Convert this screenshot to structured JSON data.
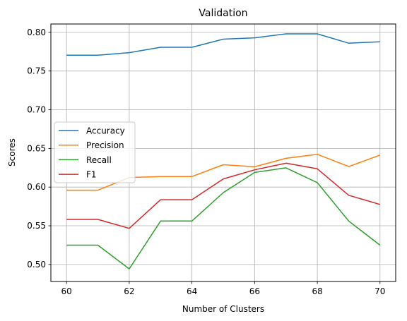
{
  "chart_data": {
    "type": "line",
    "title": "Validation",
    "xlabel": "Number of Clusters",
    "ylabel": "Scores",
    "xlim": [
      59.5,
      70.5
    ],
    "ylim": [
      0.478,
      0.8108
    ],
    "xticks": [
      60,
      62,
      64,
      66,
      68,
      70
    ],
    "yticks": [
      0.5,
      0.55,
      0.6,
      0.65,
      0.7,
      0.75,
      0.8
    ],
    "grid": true,
    "legend_position": "center-left",
    "x": [
      60,
      61,
      62,
      63,
      64,
      65,
      66,
      67,
      68,
      69,
      70
    ],
    "series": [
      {
        "name": "Accuracy",
        "color": "#1f77b4",
        "values": [
          0.7705,
          0.7705,
          0.7738,
          0.7807,
          0.7807,
          0.7912,
          0.7929,
          0.798,
          0.798,
          0.786,
          0.7878
        ]
      },
      {
        "name": "Precision",
        "color": "#ff7f0e",
        "values": [
          0.596,
          0.596,
          0.6124,
          0.6137,
          0.6137,
          0.6289,
          0.6263,
          0.6372,
          0.6424,
          0.6265,
          0.6414
        ]
      },
      {
        "name": "Recall",
        "color": "#2ca02c",
        "values": [
          0.525,
          0.525,
          0.4943,
          0.5561,
          0.5561,
          0.5929,
          0.619,
          0.6249,
          0.6057,
          0.5561,
          0.525
        ]
      },
      {
        "name": "F1",
        "color": "#d62728",
        "values": [
          0.5582,
          0.5582,
          0.5467,
          0.5837,
          0.5837,
          0.6106,
          0.6223,
          0.6309,
          0.6236,
          0.5894,
          0.5776
        ]
      }
    ]
  }
}
